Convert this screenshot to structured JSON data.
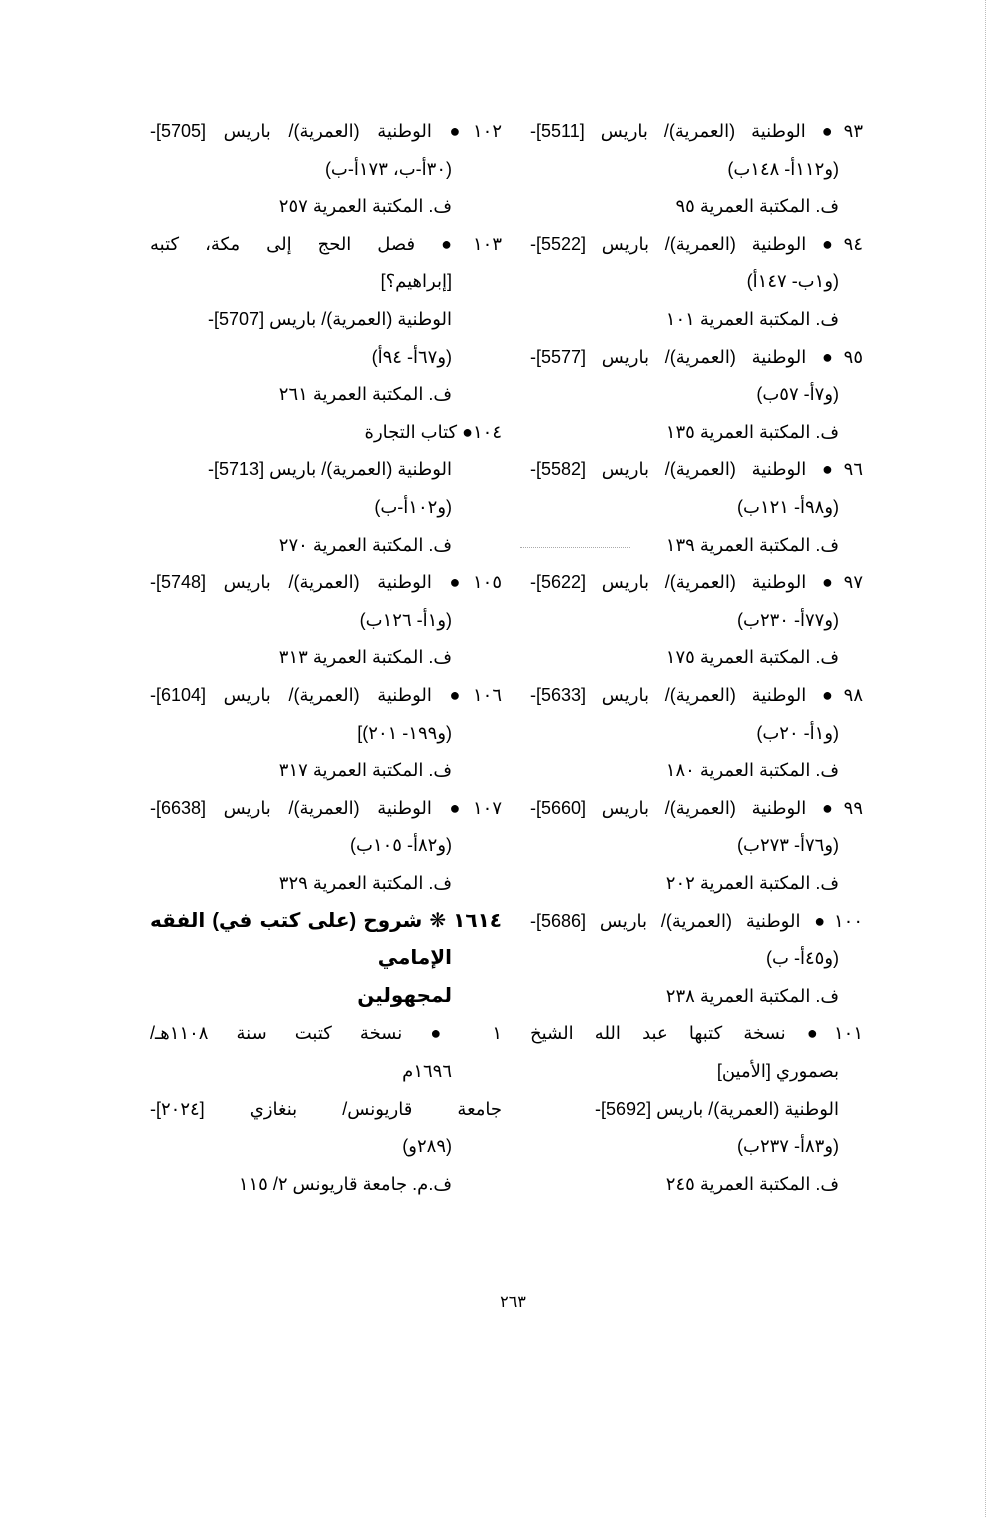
{
  "columns": {
    "right": [
      {
        "text": "٩٣● الوطنية (العمرية)/ باريس [5511]-",
        "kind": "start"
      },
      {
        "text": "(و١١٢أ- ١٤٨ب)",
        "kind": "cont"
      },
      {
        "text": "ف. المكتبة العمرية ٩٥",
        "kind": "cont"
      },
      {
        "text": "٩٤● الوطنية (العمرية)/ باريس [5522]-",
        "kind": "start"
      },
      {
        "text": "(و١ب- ١٤٧أ)",
        "kind": "cont"
      },
      {
        "text": "ف. المكتبة العمرية ١٠١",
        "kind": "cont"
      },
      {
        "text": "٩٥● الوطنية (العمرية)/ باريس [5577]-",
        "kind": "start"
      },
      {
        "text": "(و٧أ- ٥٧ب)",
        "kind": "cont"
      },
      {
        "text": "ف. المكتبة العمرية ١٣٥",
        "kind": "cont"
      },
      {
        "text": "٩٦● الوطنية (العمرية)/ باريس [5582]-",
        "kind": "start"
      },
      {
        "text": "(و٩٨أ- ١٢١ب)",
        "kind": "cont"
      },
      {
        "text": "ف. المكتبة العمرية ١٣٩",
        "kind": "cont"
      },
      {
        "text": "٩٧● الوطنية (العمرية)/ باريس [5622]-",
        "kind": "start"
      },
      {
        "text": "(و٧٧أ- ٢٣٠ب)",
        "kind": "cont"
      },
      {
        "text": "ف. المكتبة العمرية ١٧٥",
        "kind": "cont"
      },
      {
        "text": "٩٨● الوطنية (العمرية)/ باريس [5633]-",
        "kind": "start"
      },
      {
        "text": "(و١أ- ٢٠ب)",
        "kind": "cont"
      },
      {
        "text": "ف. المكتبة العمرية ١٨٠",
        "kind": "cont"
      },
      {
        "text": "٩٩● الوطنية (العمرية)/ باريس [5660]-",
        "kind": "start"
      },
      {
        "text": "(و٧٦أ- ٢٧٣ب)",
        "kind": "cont"
      },
      {
        "text": "ف. المكتبة العمرية ٢٠٢",
        "kind": "cont"
      },
      {
        "text": "١٠٠● الوطنية (العمرية)/ باريس [5686]-",
        "kind": "start"
      },
      {
        "text": "(و٤٥أ- ب)",
        "kind": "cont"
      },
      {
        "text": "ف. المكتبة العمرية ٢٣٨",
        "kind": "cont"
      },
      {
        "text": "١٠١● نسخة كتبها عبد الله الشيخ",
        "kind": "start"
      },
      {
        "text": "بصموري [الأمين]",
        "kind": "cont"
      },
      {
        "text": "الوطنية (العمرية)/ باريس [5692]-",
        "kind": "cont"
      },
      {
        "text": "(و٨٣أ- ٢٣٧ب)",
        "kind": "cont"
      },
      {
        "text": "ف. المكتبة العمرية ٢٤٥",
        "kind": "cont"
      }
    ],
    "left": [
      {
        "text": "١٠٢● الوطنية (العمرية)/ باريس [5705]-",
        "kind": "start"
      },
      {
        "text": "(٣٠أ-ب، ١٧٣أ-ب)",
        "kind": "cont"
      },
      {
        "text": "ف. المكتبة العمرية ٢٥٧",
        "kind": "cont"
      },
      {
        "text": "١٠٣● فصل الحج إلى مكة، كتبه",
        "kind": "start"
      },
      {
        "text": "[إبراهيم؟]",
        "kind": "cont"
      },
      {
        "text": "الوطنية (العمرية)/ باريس [5707]-",
        "kind": "cont"
      },
      {
        "text": "(و٦٧أ- ٩٤أ)",
        "kind": "cont"
      },
      {
        "text": "ف. المكتبة العمرية ٢٦١",
        "kind": "cont"
      },
      {
        "text": "١٠٤● كتاب التجارة",
        "kind": "start short"
      },
      {
        "text": "الوطنية (العمرية)/ باريس [5713]-",
        "kind": "cont"
      },
      {
        "text": "(و١٠٢أ-ب)",
        "kind": "cont"
      },
      {
        "text": "ف. المكتبة العمرية ٢٧٠",
        "kind": "cont"
      },
      {
        "text": "١٠٥● الوطنية (العمرية)/ باريس [5748]-",
        "kind": "start"
      },
      {
        "text": "(و١أ- ١٢٦ب)",
        "kind": "cont"
      },
      {
        "text": "ف. المكتبة العمرية ٣١٣",
        "kind": "cont"
      },
      {
        "text": "١٠٦● الوطنية (العمرية)/ باريس [6104]-",
        "kind": "start"
      },
      {
        "text": "(و١٩٩- ٢٠١)]",
        "kind": "cont"
      },
      {
        "text": "ف. المكتبة العمرية ٣١٧",
        "kind": "cont"
      },
      {
        "text": "١٠٧● الوطنية (العمرية)/ باريس [6638]-",
        "kind": "start"
      },
      {
        "text": "(و٨٢أ- ١٠٥ب)",
        "kind": "cont"
      },
      {
        "text": "ف. المكتبة العمرية ٣٢٩",
        "kind": "cont"
      },
      {
        "text": "١٦١٤ ❋ شروح (على كتب في) الفقه",
        "kind": "head"
      },
      {
        "text": "الإمامي",
        "kind": "head short cont"
      },
      {
        "text": "لمجهولين",
        "kind": "head short cont"
      },
      {
        "text": "١ ● نسخة كتبت سنة ١١٠٨هـ/",
        "kind": "start"
      },
      {
        "text": "١٦٩٦م",
        "kind": "cont"
      },
      {
        "text": "جامعة قاريونس/ بنغازي [٢٠٢٤]-",
        "kind": "start"
      },
      {
        "text": "(٢٨٩و)",
        "kind": "cont"
      },
      {
        "text": "ف.م. جامعة قاريونس ٢/ ١١٥",
        "kind": "cont"
      }
    ]
  },
  "page_number": "٢٦٣"
}
